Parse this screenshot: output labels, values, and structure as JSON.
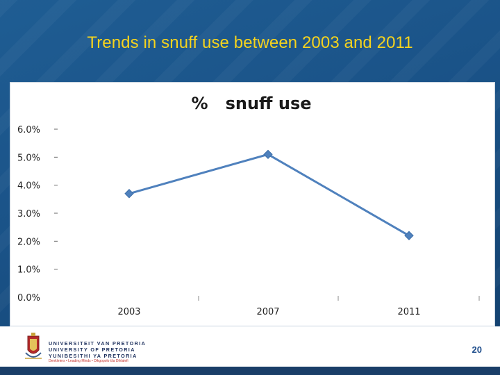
{
  "slide": {
    "title": "Trends in snuff use between 2003 and 2011",
    "page_number": "20"
  },
  "footer": {
    "university_lines": [
      "UNIVERSITEIT VAN PRETORIA",
      "UNIVERSITY OF PRETORIA",
      "YUNIBESITHI YA PRETORIA"
    ],
    "motto": "Denkleiers • Leading Minds • Dikgopolo tša Dihlalefi",
    "logo_icon": "university-crest-icon"
  },
  "colors": {
    "title": "#f6d31d",
    "line": "#4f81bd",
    "marker": "#4f81bd",
    "background": "#1a5287"
  },
  "chart_data": {
    "type": "line",
    "title": "%   snuff use",
    "xlabel": "",
    "ylabel": "",
    "categories": [
      "2003",
      "2007",
      "2011"
    ],
    "series": [
      {
        "values": [
          0.037,
          0.051,
          0.022
        ]
      }
    ],
    "ylim": [
      0,
      0.06
    ],
    "y_ticks": [
      "0.0%",
      "1.0%",
      "2.0%",
      "3.0%",
      "4.0%",
      "5.0%",
      "6.0%"
    ],
    "grid": false,
    "legend": "none"
  }
}
